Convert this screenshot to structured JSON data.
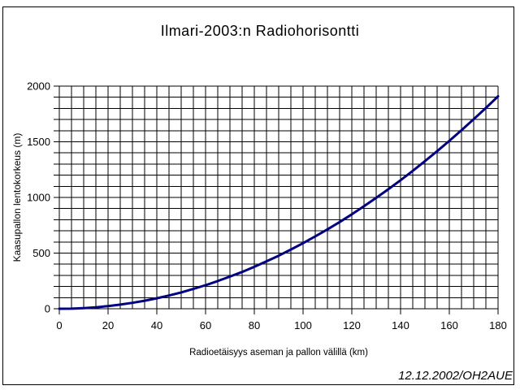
{
  "window": {
    "title": "Ilmari-2003:n Radiohorisontti",
    "credit": "12.12.2002/OH2AUE"
  },
  "chart_data": {
    "type": "line",
    "title": "Ilmari-2003:n Radiohorisontti",
    "xlabel": "Radioetäisyys aseman ja pallon välillä (km)",
    "ylabel": "Kaasupallon lentokorkeus (m)",
    "xlim": [
      0,
      180
    ],
    "ylim": [
      0,
      2000
    ],
    "x_ticks": [
      0,
      20,
      40,
      60,
      80,
      100,
      120,
      140,
      160,
      180
    ],
    "y_ticks": [
      0,
      500,
      1000,
      1500,
      2000
    ],
    "x_minor_step": 5,
    "y_minor_step": 100,
    "grid": "on",
    "legend_position": "none",
    "line_color": "#000080",
    "grid_color": "#000000",
    "background_color": "#ffffff",
    "x": [
      0,
      5,
      10,
      15,
      20,
      25,
      30,
      35,
      40,
      45,
      50,
      55,
      60,
      65,
      70,
      75,
      80,
      85,
      90,
      95,
      100,
      105,
      110,
      115,
      120,
      125,
      130,
      135,
      140,
      145,
      150,
      155,
      160,
      165,
      170,
      175,
      180
    ],
    "series": [
      {
        "name": "Radiohorisontti",
        "values": [
          0,
          1,
          6,
          13,
          24,
          37,
          53,
          72,
          94,
          119,
          147,
          178,
          212,
          249,
          289,
          331,
          377,
          426,
          477,
          532,
          589,
          650,
          713,
          779,
          848,
          921,
          996,
          1074,
          1155,
          1239,
          1326,
          1415,
          1508,
          1604,
          1703,
          1804,
          1909
        ]
      }
    ],
    "annotation": "12.12.2002/OH2AUE"
  }
}
